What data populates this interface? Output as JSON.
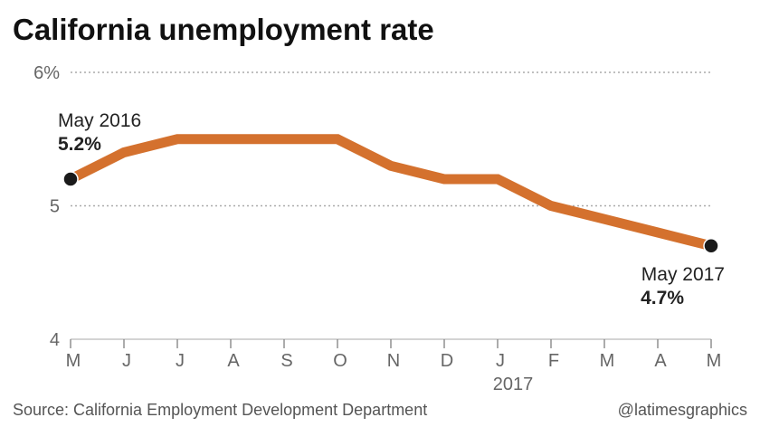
{
  "chart_data": {
    "type": "line",
    "title": "California unemployment rate",
    "x": [
      "May 2016",
      "Jun 2016",
      "Jul 2016",
      "Aug 2016",
      "Sep 2016",
      "Oct 2016",
      "Nov 2016",
      "Dec 2016",
      "Jan 2017",
      "Feb 2017",
      "Mar 2017",
      "Apr 2017",
      "May 2017"
    ],
    "series": [
      {
        "values": [
          5.2,
          5.4,
          5.5,
          5.5,
          5.5,
          5.5,
          5.3,
          5.2,
          5.2,
          5.0,
          4.9,
          4.8,
          4.7
        ]
      }
    ],
    "ylim": [
      4,
      6
    ],
    "y_ticks": [
      "4",
      "5",
      "6%"
    ],
    "x_tick_labels": [
      "M",
      "J",
      "J",
      "A",
      "S",
      "O",
      "N",
      "D",
      "J",
      "F",
      "M",
      "A",
      "M"
    ],
    "year_label": "2017",
    "annotations": {
      "start": {
        "label": "May 2016",
        "value": "5.2%"
      },
      "end": {
        "label": "May 2017",
        "value": "4.7%"
      }
    },
    "grid": true,
    "legend": "none",
    "line_color": "#D4712E",
    "marker_color": "#1a1a1a"
  },
  "footer": {
    "source": "Source: California Employment Development Department",
    "credit": "@latimesgraphics"
  }
}
